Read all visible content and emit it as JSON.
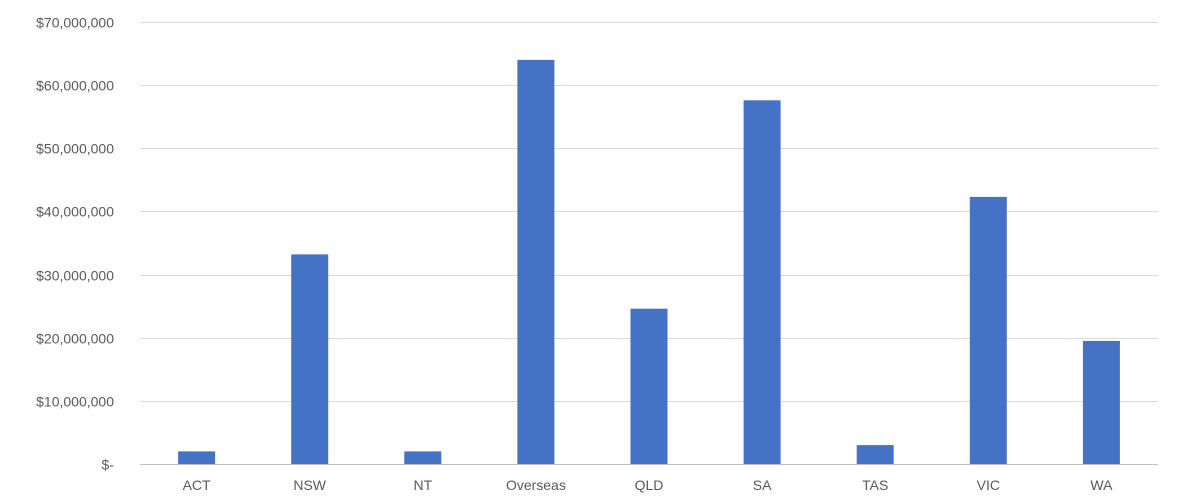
{
  "chart_data": {
    "type": "bar",
    "title": "",
    "xlabel": "",
    "ylabel": "",
    "categories": [
      "ACT",
      "NSW",
      "NT",
      "Overseas",
      "QLD",
      "SA",
      "TAS",
      "VIC",
      "WA"
    ],
    "series": [
      {
        "values": [
          2000000,
          33200000,
          2000000,
          64000000,
          24600000,
          57600000,
          3000000,
          42300000,
          19500000
        ]
      }
    ],
    "ylim": [
      0,
      70000000
    ],
    "y_ticks": [
      0,
      10000000,
      20000000,
      30000000,
      40000000,
      50000000,
      60000000,
      70000000
    ],
    "y_tick_labels": [
      "$-",
      "$10,000,000",
      "$20,000,000",
      "$30,000,000",
      "$40,000,000",
      "$50,000,000",
      "$60,000,000",
      "$70,000,000"
    ],
    "grid": true,
    "legend": "none",
    "bar_color": "#4472c4"
  }
}
